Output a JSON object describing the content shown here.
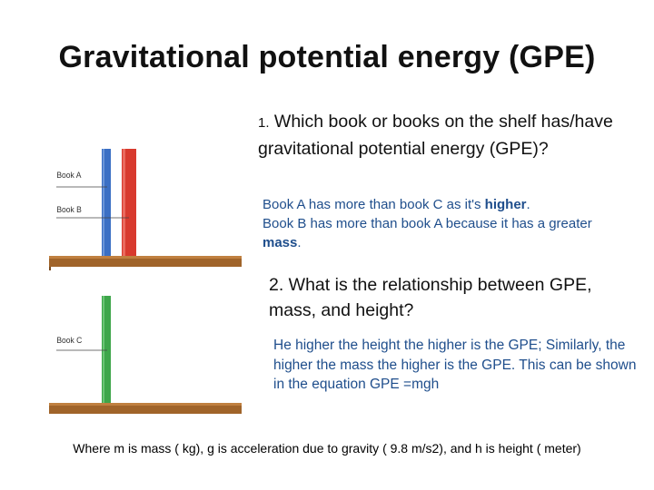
{
  "slide": {
    "title": "Gravitational potential energy (GPE)",
    "question1_number": "1.",
    "question1_text": " Which book or books on the shelf has/have gravitational potential energy (GPE)?",
    "answer1": {
      "line1_prefix": "Book A has more than book C as it's ",
      "line1_bold": "higher",
      "line1_suffix": ".",
      "line2_prefix": "Book B has more than book A because it has a greater ",
      "line2_bold": "mass",
      "line2_suffix": "."
    },
    "question2": "2. What is the relationship between GPE, mass, and height?",
    "answer2": "He higher the height the higher is the GPE; Similarly, the higher the mass the higher is the GPE. This can be shown in the equation GPE =mgh",
    "footer": "Where  m is mass ( kg), g is acceleration due to gravity ( 9.8 m/s2), and h is height ( meter)"
  },
  "illustration": {
    "book_a_label": "Book A",
    "book_b_label": "Book B",
    "book_c_label": "Book C",
    "colors": {
      "book_a": "#3a6fc4",
      "book_b": "#d83a2e",
      "book_c": "#3ea64a",
      "shelf": "#a0642a"
    }
  }
}
